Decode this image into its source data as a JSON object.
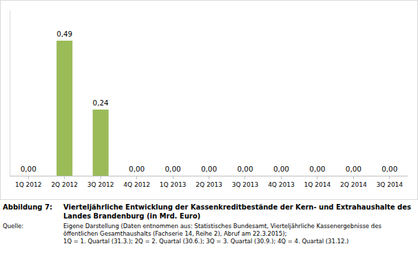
{
  "chart_data": {
    "type": "bar",
    "title": "Vierteljährliche Entwicklung der Kassenkreditbestände der Kern- und Extrahaushalte des Landes Brandenburg (in Mrd. Euro)",
    "annotations": [
      "Abbildung 7:",
      "Quelle:",
      "Eigene Darstellung (Daten entnommen aus: Statistisches Bundesamt, Vierteljährliche Kassenergebnisse des öffentlichen Gesamthaushalts (Fachserie 14, Reihe 2), Abruf am 22.3.2015);",
      "1Q = 1. Quartal (31.3.); 2Q = 2. Quartal (30.6.); 3Q = 3. Quartal (30.9.); 4Q = 4. Quartal (31.12.)"
    ],
    "categories": [
      "1Q 2012",
      "2Q 2012",
      "3Q 2012",
      "4Q 2012",
      "1Q 2013",
      "2Q 2013",
      "3Q 2013",
      "4Q 2013",
      "1Q 2014",
      "2Q 2014",
      "3Q 2014"
    ],
    "values": [
      0,
      0.49,
      0.24,
      0,
      0,
      0,
      0,
      0,
      0,
      0,
      0
    ],
    "value_labels": [
      "0,00",
      "0,49",
      "0,24",
      "0,00",
      "0,00",
      "0,00",
      "0,00",
      "0,00",
      "0,00",
      "0,00",
      "0,00"
    ],
    "color": "#9bbb59",
    "ylim": [
      0,
      0.6
    ],
    "data_labels": true,
    "grid": false,
    "tick_labels": "x"
  }
}
